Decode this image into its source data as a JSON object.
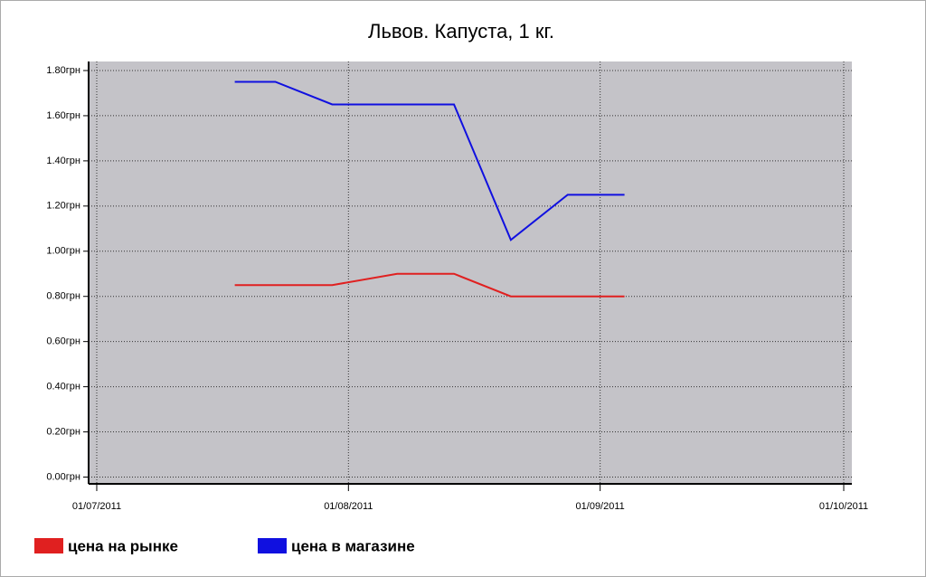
{
  "chart_data": {
    "type": "line",
    "title": "Львов. Капуста, 1 кг.",
    "x": [
      "2011-07-18",
      "2011-07-23",
      "2011-07-30",
      "2011-08-07",
      "2011-08-14",
      "2011-08-21",
      "2011-08-28",
      "2011-09-04"
    ],
    "series": [
      {
        "name": "цена на рынке",
        "color": "#e02020",
        "values": [
          0.85,
          0.85,
          0.85,
          0.9,
          0.9,
          0.8,
          0.8,
          0.8
        ]
      },
      {
        "name": "цена в магазине",
        "color": "#1010e0",
        "values": [
          1.75,
          1.75,
          1.65,
          1.65,
          1.65,
          1.05,
          1.25,
          1.25
        ]
      }
    ],
    "xlim": [
      "2011-06-30",
      "2011-10-02"
    ],
    "xticks": [
      {
        "value": "2011-07-01",
        "label": "01/07/2011"
      },
      {
        "value": "2011-08-01",
        "label": "01/08/2011"
      },
      {
        "value": "2011-09-01",
        "label": "01/09/2011"
      },
      {
        "value": "2011-10-01",
        "label": "01/10/2011"
      }
    ],
    "ylim": [
      -0.03,
      1.84
    ],
    "yticks": [
      {
        "value": 0,
        "label": "0.00грн"
      },
      {
        "value": 0.2,
        "label": "0.20грн"
      },
      {
        "value": 0.4,
        "label": "0.40грн"
      },
      {
        "value": 0.6,
        "label": "0.60грн"
      },
      {
        "value": 0.8,
        "label": "0.80грн"
      },
      {
        "value": 1.0,
        "label": "1.00грн"
      },
      {
        "value": 1.2,
        "label": "1.20грн"
      },
      {
        "value": 1.4,
        "label": "1.40грн"
      },
      {
        "value": 1.6,
        "label": "1.60грн"
      },
      {
        "value": 1.8,
        "label": "1.80грн"
      }
    ],
    "grid": true,
    "background": "#c4c3c8"
  }
}
